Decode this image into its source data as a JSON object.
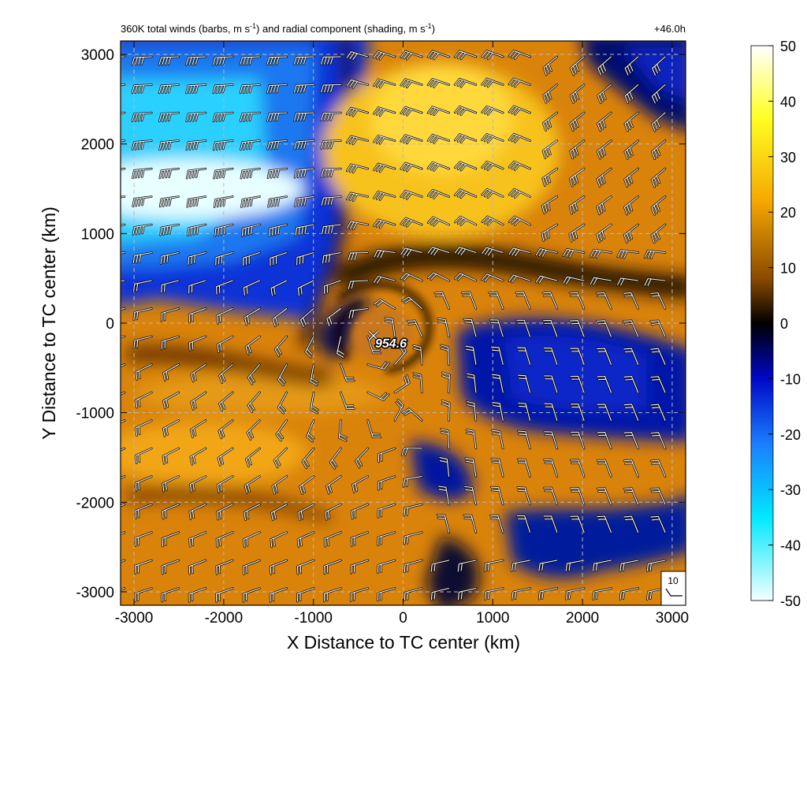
{
  "chart_data": {
    "type": "heatmap",
    "title": "360K total winds (barbs, m s",
    "title_unit_exp": "-1",
    "title_mid": ") and radial component (shading, m s",
    "title_end": ")",
    "time_label": "+46.0h",
    "xlabel": "X Distance to TC center (km)",
    "ylabel": "Y Distance to TC center (km)",
    "xlim": [
      -3150,
      3150
    ],
    "ylim": [
      -3150,
      3150
    ],
    "xticks": [
      "-3000",
      "-2000",
      "-1000",
      "0",
      "1000",
      "2000",
      "3000"
    ],
    "xtick_values": [
      -3000,
      -2000,
      -1000,
      0,
      1000,
      2000,
      3000
    ],
    "yticks": [
      "3000",
      "2000",
      "1000",
      "0",
      "-1000",
      "-2000",
      "-3000"
    ],
    "ytick_values": [
      3000,
      2000,
      1000,
      0,
      -1000,
      -2000,
      -3000
    ],
    "grid": true,
    "grid_style": "dashed",
    "colorbar": {
      "range": [
        -50,
        50
      ],
      "ticks": [
        "50",
        "40",
        "30",
        "20",
        "10",
        "0",
        "-10",
        "-20",
        "-30",
        "-40",
        "-50"
      ],
      "tick_values": [
        50,
        40,
        30,
        20,
        10,
        0,
        -10,
        -20,
        -30,
        -40,
        -50
      ],
      "colors": [
        "#ffffff",
        "#ffff00",
        "#ffa500",
        "#8b4500",
        "#000000",
        "#0000c8",
        "#1e90ff",
        "#00e5ff",
        "#ffffff"
      ]
    },
    "center_marker": {
      "x": -350,
      "y": -150,
      "label": "954.6"
    },
    "reference_barb": {
      "label": "10"
    }
  }
}
